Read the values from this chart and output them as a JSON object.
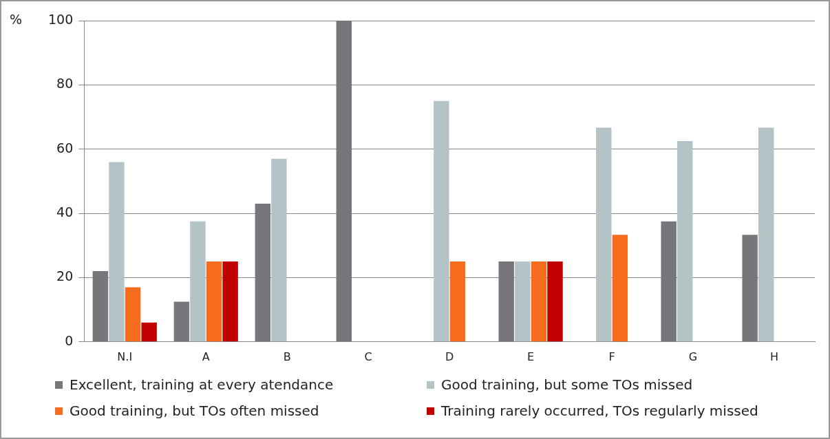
{
  "chart_data": {
    "type": "bar",
    "ylabel": "%",
    "categories": [
      "N.I",
      "A",
      "B",
      "C",
      "D",
      "E",
      "F",
      "G",
      "H"
    ],
    "series": [
      {
        "name": "Excellent, training at every atendance",
        "color": "#77777b",
        "values": [
          22,
          12.5,
          43,
          100,
          null,
          25,
          null,
          37.5,
          33.3
        ]
      },
      {
        "name": "Good training, but some TOs missed",
        "color": "#b4c3c6",
        "values": [
          56,
          37.5,
          57,
          null,
          75,
          25,
          66.7,
          62.5,
          66.7
        ]
      },
      {
        "name": "Good training, but TOs often missed",
        "color": "#f56c1e",
        "values": [
          17,
          25,
          null,
          null,
          25,
          25,
          33.3,
          null,
          null
        ]
      },
      {
        "name": "Training rarely occurred, TOs regularly missed",
        "color": "#c00000",
        "values": [
          6,
          25,
          null,
          null,
          null,
          25,
          null,
          null,
          null
        ]
      }
    ],
    "ylim": [
      0,
      100
    ],
    "yticks": [
      0,
      20,
      40,
      60,
      80,
      100
    ],
    "grid": "y",
    "legend": "bottom"
  }
}
